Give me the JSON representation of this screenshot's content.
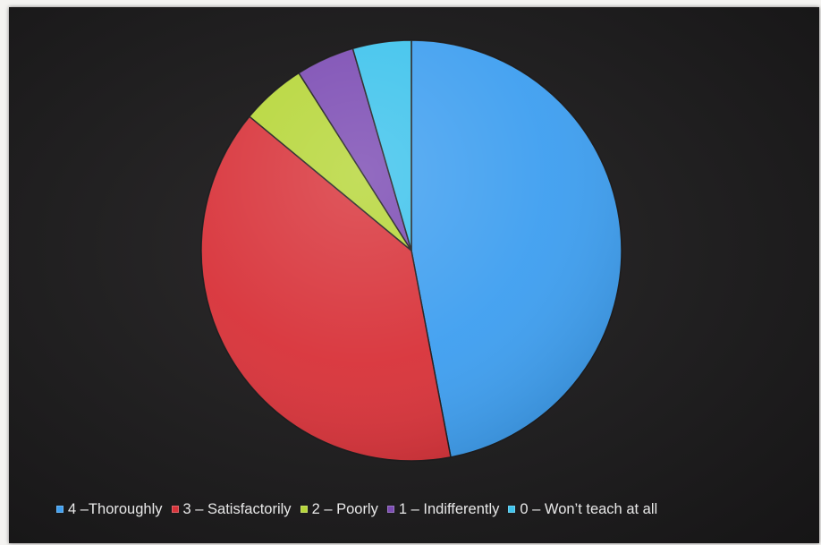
{
  "chart_data": {
    "type": "pie",
    "title": "",
    "categories": [
      "4 –Thoroughly",
      "3 – Satisfactorily",
      "2 – Poorly",
      "1 – Indifferently",
      "0 – Won’t teach at all"
    ],
    "values": [
      47,
      39,
      5,
      4.5,
      4.5
    ],
    "colors": [
      "#3f9ff0",
      "#d8333a",
      "#b6d638",
      "#7b4bb3",
      "#3ec3ec"
    ],
    "legend_position": "bottom"
  }
}
